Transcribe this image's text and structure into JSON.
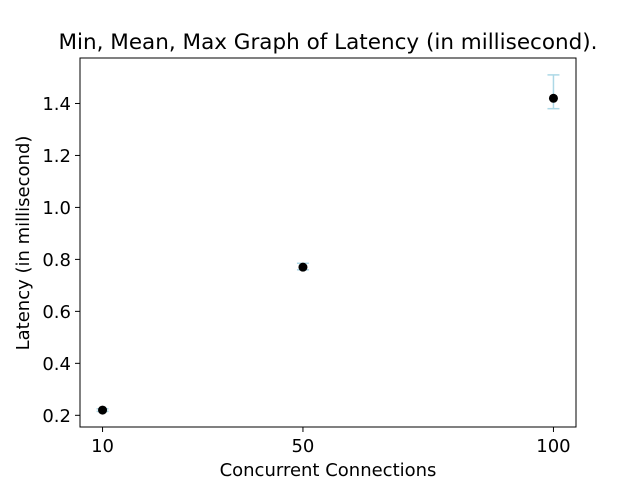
{
  "chart_data": {
    "type": "scatter",
    "title": "Min, Mean, Max Graph of Latency (in millisecond).",
    "xlabel": "Concurrent Connections",
    "ylabel": "Latency (in millisecond)",
    "x_ticks": [
      10,
      50,
      100
    ],
    "x_tick_labels": [
      "10",
      "50",
      "100"
    ],
    "y_ticks": [
      0.2,
      0.4,
      0.6,
      0.8,
      1.0,
      1.2,
      1.4
    ],
    "y_tick_labels": [
      "0.2",
      "0.4",
      "0.6",
      "0.8",
      "1.0",
      "1.2",
      "1.4"
    ],
    "xlim": [
      5.5,
      104.5
    ],
    "ylim": [
      0.155,
      1.575
    ],
    "grid": false,
    "series": [
      {
        "points": [
          {
            "x": 10,
            "mean": 0.22,
            "min": 0.215,
            "max": 0.225
          },
          {
            "x": 50,
            "mean": 0.77,
            "min": 0.76,
            "max": 0.785
          },
          {
            "x": 100,
            "mean": 1.42,
            "min": 1.38,
            "max": 1.51
          }
        ]
      }
    ],
    "marker_color": "#000000",
    "errorbar_color": "#add8e6"
  }
}
